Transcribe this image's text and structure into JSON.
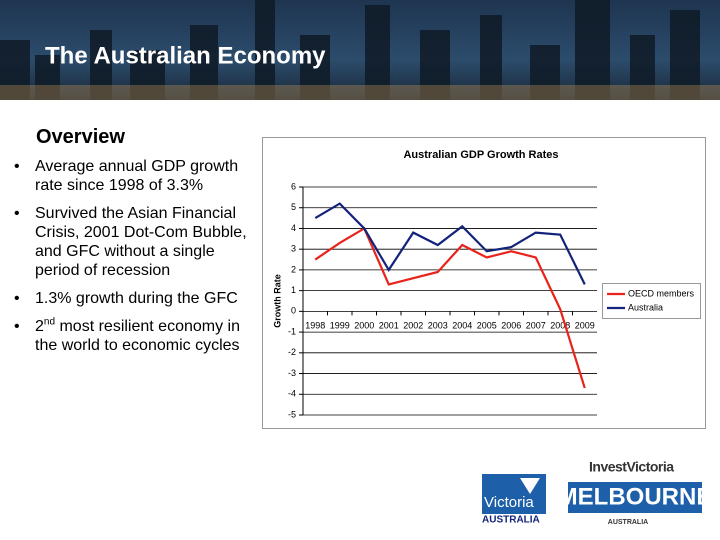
{
  "header": {
    "title": "The Australian Economy"
  },
  "overview": {
    "heading": "Overview",
    "bullets": [
      [
        "Average annual GDP growth rate since 1998 of 3.3%"
      ],
      [
        "Survived the Asian Financial Crisis, 2001 Dot-Com Bubble, and GFC without a single period of recession"
      ],
      [
        "1.3% growth during the GFC"
      ],
      [
        "2",
        "nd",
        " most resilient economy in the world to economic cycles"
      ]
    ]
  },
  "logos": {
    "victoria": "Victoria",
    "victoria_sub": "AUSTRALIA",
    "invest": "InvestVictoria",
    "melbourne": "MELBOURNE",
    "melbourne_sub": "AUSTRALIA"
  },
  "chart_data": {
    "type": "line",
    "title": "Australian GDP Growth Rates",
    "y_label": "Growth Rate",
    "categories": [
      "1998",
      "1999",
      "2000",
      "2001",
      "2002",
      "2003",
      "2004",
      "2005",
      "2006",
      "2007",
      "2008",
      "2009"
    ],
    "series": [
      {
        "name": "OECD members",
        "color": "#e8231c",
        "values": [
          2.5,
          3.3,
          4.0,
          1.3,
          1.6,
          1.9,
          3.2,
          2.6,
          2.9,
          2.6,
          0.1,
          -3.7
        ]
      },
      {
        "name": "Australia",
        "color": "#13237a",
        "values": [
          4.5,
          5.2,
          4.0,
          2.0,
          3.8,
          3.2,
          4.1,
          2.9,
          3.1,
          3.8,
          3.7,
          1.3
        ]
      }
    ],
    "ylim": [
      -5,
      6
    ],
    "yticks": [
      -5,
      -4,
      -3,
      -2,
      -1,
      0,
      1,
      2,
      3,
      4,
      5,
      6
    ],
    "grid": true,
    "legend": "right"
  }
}
